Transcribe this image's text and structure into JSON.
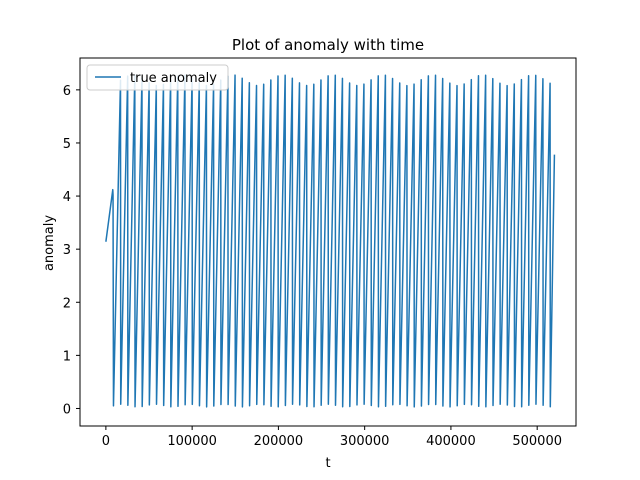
{
  "chart_data": {
    "type": "line",
    "title": "Plot of anomaly with time",
    "xlabel": "t",
    "ylabel": "anomaly",
    "xlim": [
      -30000,
      545000
    ],
    "ylim": [
      -0.33,
      6.6
    ],
    "xticks": [
      0,
      100000,
      200000,
      300000,
      400000,
      500000
    ],
    "xtick_labels": [
      "0",
      "100000",
      "200000",
      "300000",
      "400000",
      "500000"
    ],
    "yticks": [
      0,
      1,
      2,
      3,
      4,
      5,
      6
    ],
    "ytick_labels": [
      "0",
      "1",
      "2",
      "3",
      "4",
      "5",
      "6"
    ],
    "grid": false,
    "legend_position": "upper-left",
    "series": [
      {
        "name": "true anomaly",
        "color": "#1f77b4",
        "x_start": 0,
        "x_end": 520000,
        "start_value": 3.14,
        "end_value": 4.78,
        "first_ramp_to": 4.12,
        "first_ramp_end_t": 8000,
        "approx_period": 8300,
        "peak_range": [
          6.08,
          6.28
        ],
        "trough_range": [
          0.03,
          0.08
        ]
      }
    ]
  }
}
